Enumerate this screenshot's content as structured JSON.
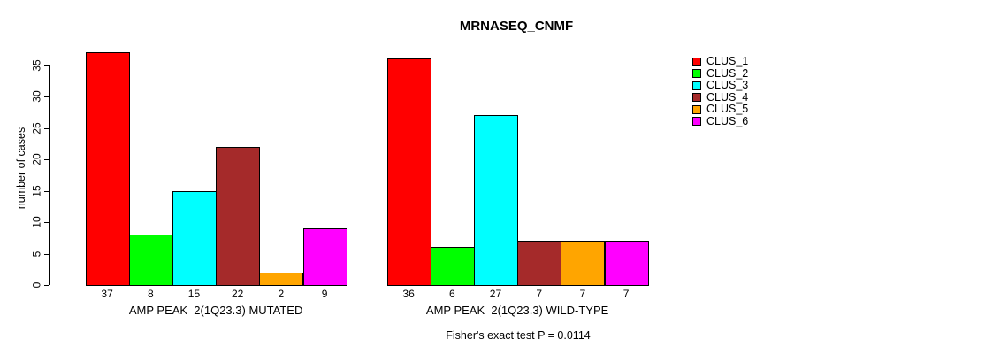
{
  "figure": {
    "title": "MRNASEQ_CNMF",
    "annotation": "Fisher's exact test P = 0.0114"
  },
  "chart_data": {
    "type": "bar",
    "title": "MRNASEQ_CNMF",
    "xlabel": "",
    "ylabel": "number of cases",
    "ylim": [
      0,
      35
    ],
    "y_ticks": [
      0,
      5,
      10,
      15,
      20,
      25,
      30,
      35
    ],
    "grid": false,
    "legend_position": "right",
    "series_labels": [
      "CLUS_1",
      "CLUS_2",
      "CLUS_3",
      "CLUS_4",
      "CLUS_5",
      "CLUS_6"
    ],
    "colors": [
      "#FF0000",
      "#00FF00",
      "#00FFFF",
      "#A52A2A",
      "#FFA500",
      "#FF00FF"
    ],
    "groups": [
      {
        "label": "AMP PEAK  2(1Q23.3) MUTATED",
        "values": [
          37,
          8,
          15,
          22,
          2,
          9
        ]
      },
      {
        "label": "AMP PEAK  2(1Q23.3) WILD-TYPE",
        "values": [
          36,
          6,
          27,
          7,
          7,
          7
        ]
      }
    ],
    "bar_value_labels": [
      [
        37,
        8,
        15,
        22,
        2,
        9
      ],
      [
        36,
        6,
        27,
        7,
        7,
        7
      ]
    ],
    "annotation": "Fisher's exact test P = 0.0114"
  }
}
